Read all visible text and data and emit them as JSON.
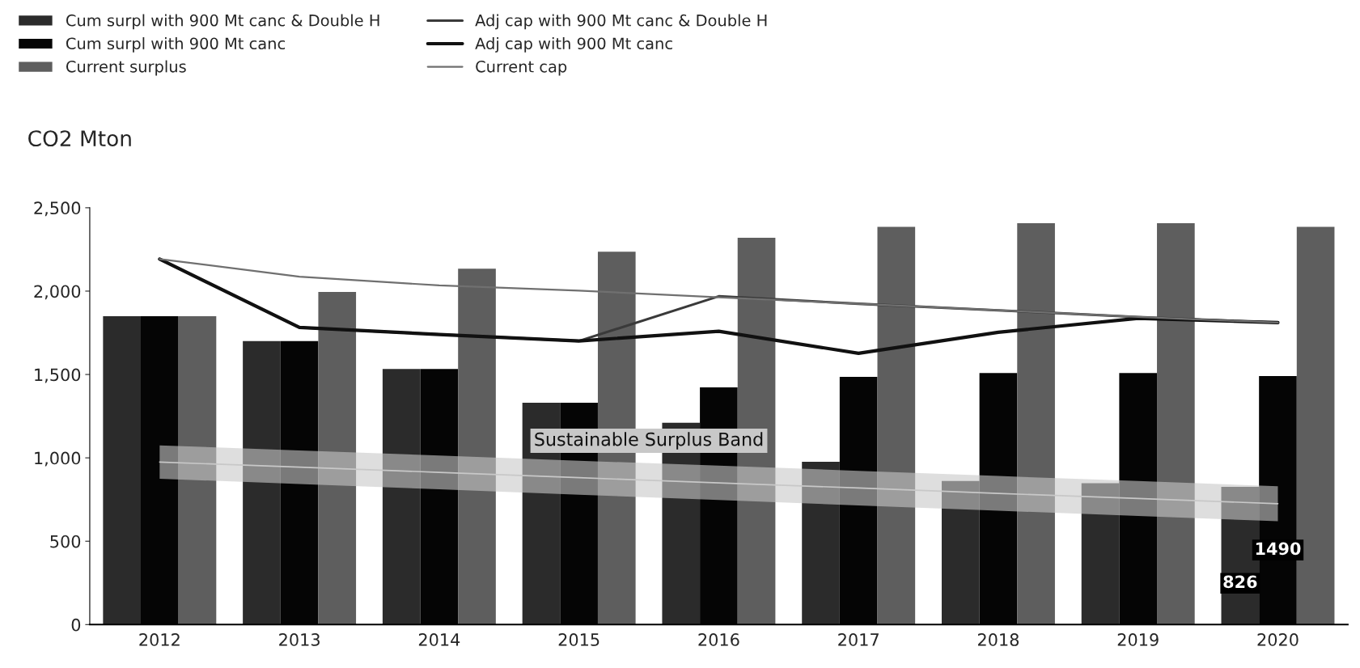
{
  "chart_data": {
    "type": "bar",
    "ylabel": "CO2 Mton",
    "categories": [
      "2012",
      "2013",
      "2014",
      "2015",
      "2016",
      "2017",
      "2018",
      "2019",
      "2020"
    ],
    "series": [
      {
        "name": "Cum surpl with 900 Mt canc & Double H",
        "color": "#2b2b2b",
        "values": [
          1850,
          1700,
          1533,
          1331,
          1210,
          976,
          861,
          848,
          826
        ],
        "value_labels": [
          null,
          null,
          null,
          null,
          null,
          null,
          null,
          null,
          "826"
        ]
      },
      {
        "name": "Cum surpl with 900 Mt canc",
        "color": "#050505",
        "values": [
          1850,
          1700,
          1533,
          1331,
          1423,
          1486,
          1509,
          1509,
          1490
        ],
        "value_labels": [
          null,
          null,
          null,
          null,
          null,
          null,
          null,
          null,
          "1490"
        ]
      },
      {
        "name": "Current surplus",
        "color": "#5e5e5e",
        "values": [
          1850,
          1995,
          2134,
          2236,
          2320,
          2386,
          2407,
          2407,
          2386
        ]
      },
      {
        "type": "line",
        "name": "Adj cap with 900 Mt canc & Double H",
        "color": "#3a3a3a",
        "values": [
          2192,
          1782,
          1740,
          1701,
          1969,
          1924,
          1885,
          1845,
          1811
        ]
      },
      {
        "type": "line",
        "name": "Adj cap with 900 Mt canc",
        "color": "#111111",
        "values": [
          2192,
          1782,
          1740,
          1701,
          1759,
          1627,
          1753,
          1837,
          1811
        ]
      },
      {
        "type": "line",
        "name": "Current cap",
        "color": "#707070",
        "values": [
          2192,
          2087,
          2034,
          2003,
          1963,
          1924,
          1885,
          1845,
          1811
        ]
      },
      {
        "type": "line",
        "name": "Sustainable Surplus Band",
        "color": "#c8c8c8",
        "values": [
          975,
          944,
          913,
          881,
          850,
          819,
          787,
          756,
          725
        ],
        "lower": [
          875,
          843,
          811,
          779,
          747,
          715,
          683,
          651,
          620
        ],
        "upper": [
          1075,
          1044,
          1014,
          983,
          953,
          922,
          891,
          861,
          830
        ]
      }
    ],
    "ylim": [
      0,
      2500
    ],
    "yticks": [
      0,
      500,
      {
        "value": 1000,
        "label": "1,000"
      },
      {
        "value": 1500,
        "label": "1,500"
      },
      {
        "value": 2000,
        "label": "2,000"
      },
      {
        "value": 2500,
        "label": "2,500"
      }
    ],
    "legend": "top left",
    "grid": false
  }
}
